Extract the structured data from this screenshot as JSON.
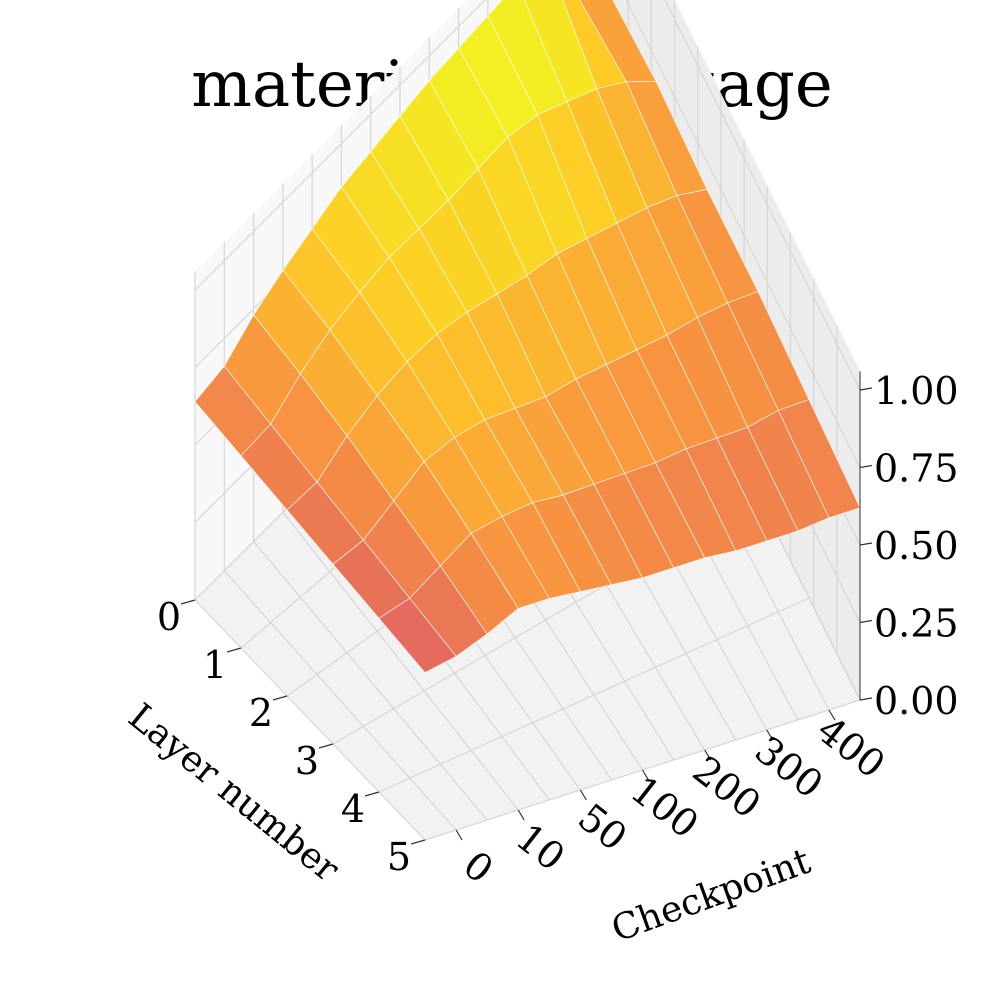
{
  "chart_data": {
    "type": "surface",
    "title": "material_advantage",
    "xlabel": "Layer number",
    "ylabel": "Checkpoint",
    "zlabel": "",
    "layers": [
      0,
      1,
      2,
      3,
      4,
      5
    ],
    "layer_ticks": [
      "0",
      "1",
      "2",
      "3",
      "4",
      "5"
    ],
    "checkpoint_ticks": [
      "0",
      "10",
      "50",
      "100",
      "200",
      "300",
      "400"
    ],
    "zticks": [
      "0.00",
      "0.25",
      "0.50",
      "0.75",
      "1.00"
    ],
    "zlim": [
      0.0,
      1.0
    ],
    "grid": true,
    "colormap": [
      "#e16462",
      "#f89540",
      "#fdca26",
      "#f0f921"
    ],
    "z": [
      [
        0.64,
        0.66,
        0.73,
        0.78,
        0.82,
        0.86,
        0.88,
        0.9,
        0.92,
        0.93,
        0.94,
        0.95,
        0.94,
        0.73,
        0.66
      ],
      [
        0.62,
        0.64,
        0.72,
        0.78,
        0.82,
        0.85,
        0.86,
        0.87,
        0.89,
        0.91,
        0.9,
        0.86,
        0.82,
        0.76,
        0.68
      ],
      [
        0.6,
        0.62,
        0.7,
        0.76,
        0.8,
        0.82,
        0.82,
        0.81,
        0.8,
        0.8,
        0.78,
        0.76,
        0.74,
        0.71,
        0.66
      ],
      [
        0.58,
        0.6,
        0.67,
        0.74,
        0.76,
        0.76,
        0.74,
        0.72,
        0.72,
        0.71,
        0.7,
        0.69,
        0.69,
        0.68,
        0.66
      ],
      [
        0.56,
        0.58,
        0.64,
        0.7,
        0.71,
        0.71,
        0.69,
        0.68,
        0.67,
        0.66,
        0.66,
        0.65,
        0.64,
        0.65,
        0.64
      ],
      [
        0.54,
        0.56,
        0.6,
        0.65,
        0.65,
        0.64,
        0.63,
        0.62,
        0.62,
        0.62,
        0.61,
        0.61,
        0.61,
        0.62,
        0.62
      ]
    ]
  }
}
